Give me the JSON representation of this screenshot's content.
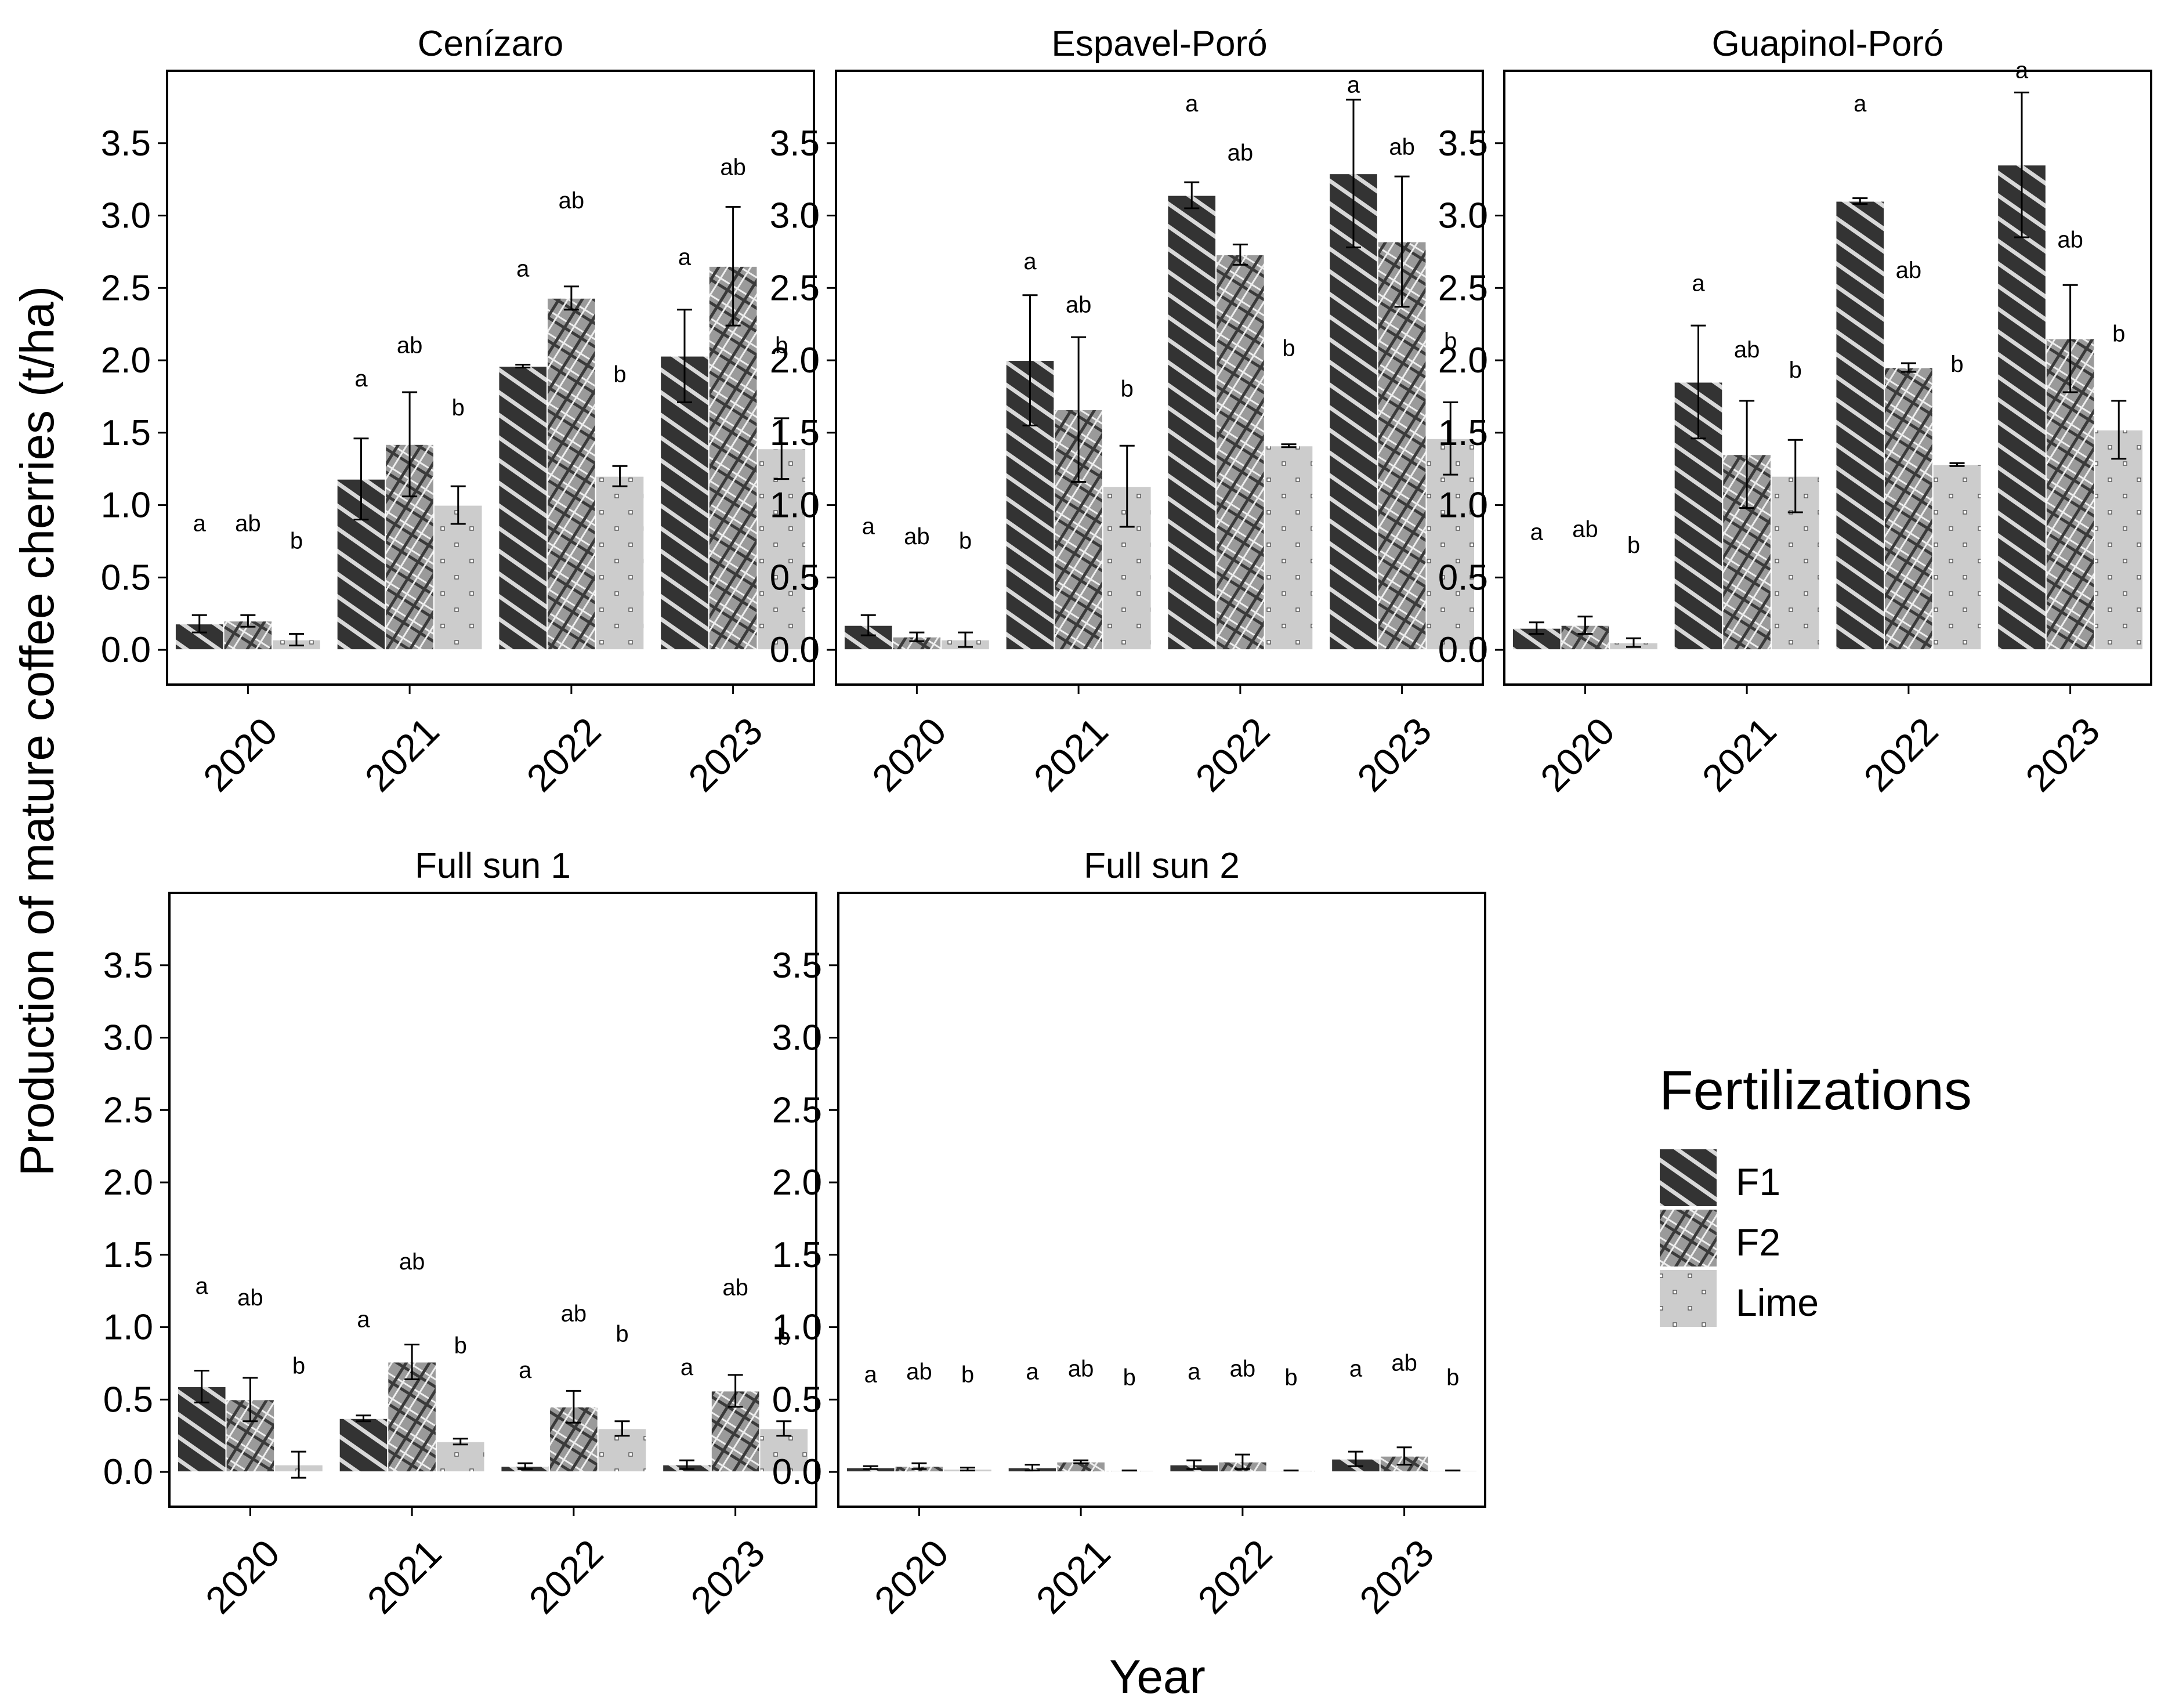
{
  "chart_data": {
    "type": "bar",
    "xlabel": "Year",
    "ylabel": "Production of mature coffee cherries (t/ha)",
    "ylim": [
      -0.24,
      4.0
    ],
    "yticks": [
      "0.0",
      "0.5",
      "1.0",
      "1.5",
      "2.0",
      "2.5",
      "3.0",
      "3.5"
    ],
    "categories": [
      "2020",
      "2021",
      "2022",
      "2023"
    ],
    "legend": {
      "title": "Fertilizations",
      "position": "right",
      "items": [
        "F1",
        "F2",
        "Lime"
      ]
    },
    "series_colors": [
      "#333333",
      "#999999",
      "#cccccc"
    ],
    "panels": [
      {
        "title": "Cenízaro",
        "series": [
          {
            "name": "F1",
            "values": [
              0.18,
              1.18,
              1.96,
              2.03
            ],
            "errors": [
              0.06,
              0.28,
              0.01,
              0.32
            ]
          },
          {
            "name": "F2",
            "values": [
              0.2,
              1.42,
              2.43,
              2.65
            ],
            "errors": [
              0.04,
              0.36,
              0.08,
              0.41
            ]
          },
          {
            "name": "Lime",
            "values": [
              0.07,
              1.0,
              1.2,
              1.39
            ],
            "errors": [
              0.04,
              0.13,
              0.07,
              0.21
            ]
          }
        ],
        "letters": [
          {
            "F1": "a",
            "F2": "ab",
            "Lime": "b",
            "y": [
              0.82,
              0.82,
              0.7
            ]
          },
          {
            "F1": "a",
            "F2": "ab",
            "Lime": "b",
            "y": [
              1.82,
              2.05,
              1.62
            ]
          },
          {
            "F1": "a",
            "F2": "ab",
            "Lime": "b",
            "y": [
              2.58,
              3.05,
              1.85
            ]
          },
          {
            "F1": "a",
            "F2": "ab",
            "Lime": "b",
            "y": [
              2.66,
              3.28,
              2.05
            ]
          }
        ]
      },
      {
        "title": "Espavel-Poró",
        "series": [
          {
            "name": "F1",
            "values": [
              0.17,
              2.0,
              3.14,
              3.29
            ],
            "errors": [
              0.07,
              0.45,
              0.09,
              0.51
            ]
          },
          {
            "name": "F2",
            "values": [
              0.09,
              1.66,
              2.73,
              2.82
            ],
            "errors": [
              0.03,
              0.5,
              0.07,
              0.45
            ]
          },
          {
            "name": "Lime",
            "values": [
              0.07,
              1.13,
              1.41,
              1.46
            ],
            "errors": [
              0.05,
              0.28,
              0.01,
              0.25
            ]
          }
        ],
        "letters": [
          {
            "F1": "a",
            "F2": "ab",
            "Lime": "b",
            "y": [
              0.8,
              0.73,
              0.7
            ]
          },
          {
            "F1": "a",
            "F2": "ab",
            "Lime": "b",
            "y": [
              2.63,
              2.33,
              1.75
            ]
          },
          {
            "F1": "a",
            "F2": "ab",
            "Lime": "b",
            "y": [
              3.72,
              3.38,
              2.03
            ]
          },
          {
            "F1": "a",
            "F2": "ab",
            "Lime": "b",
            "y": [
              3.85,
              3.42,
              2.08
            ]
          }
        ]
      },
      {
        "title": "Guapinol-Poró",
        "series": [
          {
            "name": "F1",
            "values": [
              0.15,
              1.85,
              3.1,
              3.35
            ],
            "errors": [
              0.04,
              0.39,
              0.02,
              0.5
            ]
          },
          {
            "name": "F2",
            "values": [
              0.17,
              1.35,
              1.95,
              2.15
            ],
            "errors": [
              0.06,
              0.37,
              0.03,
              0.37
            ]
          },
          {
            "name": "Lime",
            "values": [
              0.05,
              1.2,
              1.28,
              1.52
            ],
            "errors": [
              0.03,
              0.25,
              0.01,
              0.2
            ]
          }
        ],
        "letters": [
          {
            "F1": "a",
            "F2": "ab",
            "Lime": "b",
            "y": [
              0.76,
              0.78,
              0.67
            ]
          },
          {
            "F1": "a",
            "F2": "ab",
            "Lime": "b",
            "y": [
              2.48,
              2.02,
              1.88
            ]
          },
          {
            "F1": "a",
            "F2": "ab",
            "Lime": "b",
            "y": [
              3.72,
              2.57,
              1.92
            ]
          },
          {
            "F1": "a",
            "F2": "ab",
            "Lime": "b",
            "y": [
              3.95,
              2.78,
              2.13
            ]
          }
        ]
      },
      {
        "title": "Full sun 1",
        "series": [
          {
            "name": "F1",
            "values": [
              0.59,
              0.37,
              0.04,
              0.05
            ],
            "errors": [
              0.11,
              0.02,
              0.02,
              0.03
            ]
          },
          {
            "name": "F2",
            "values": [
              0.5,
              0.76,
              0.45,
              0.56
            ],
            "errors": [
              0.15,
              0.12,
              0.11,
              0.11
            ]
          },
          {
            "name": "Lime",
            "values": [
              0.05,
              0.21,
              0.3,
              0.3
            ],
            "errors": [
              0.09,
              0.02,
              0.05,
              0.05
            ]
          }
        ],
        "letters": [
          {
            "F1": "a",
            "F2": "ab",
            "Lime": "b",
            "y": [
              1.23,
              1.15,
              0.68
            ]
          },
          {
            "F1": "a",
            "F2": "ab",
            "Lime": "b",
            "y": [
              1.0,
              1.4,
              0.82
            ]
          },
          {
            "F1": "a",
            "F2": "ab",
            "Lime": "b",
            "y": [
              0.65,
              1.04,
              0.9
            ]
          },
          {
            "F1": "a",
            "F2": "ab",
            "Lime": "b",
            "y": [
              0.67,
              1.22,
              0.88
            ]
          }
        ]
      },
      {
        "title": "Full sun 2",
        "series": [
          {
            "name": "F1",
            "values": [
              0.03,
              0.03,
              0.05,
              0.09
            ],
            "errors": [
              0.01,
              0.02,
              0.03,
              0.05
            ]
          },
          {
            "name": "F2",
            "values": [
              0.04,
              0.07,
              0.07,
              0.11
            ],
            "errors": [
              0.02,
              0.01,
              0.05,
              0.06
            ]
          },
          {
            "name": "Lime",
            "values": [
              0.02,
              0.01,
              0.01,
              0.01
            ],
            "errors": [
              0.01,
              0.0,
              0.0,
              0.0
            ]
          }
        ],
        "letters": [
          {
            "F1": "a",
            "F2": "ab",
            "Lime": "b",
            "y": [
              0.62,
              0.64,
              0.62
            ]
          },
          {
            "F1": "a",
            "F2": "ab",
            "Lime": "b",
            "y": [
              0.64,
              0.66,
              0.6
            ]
          },
          {
            "F1": "a",
            "F2": "ab",
            "Lime": "b",
            "y": [
              0.64,
              0.66,
              0.6
            ]
          },
          {
            "F1": "a",
            "F2": "ab",
            "Lime": "b",
            "y": [
              0.66,
              0.7,
              0.6
            ]
          }
        ]
      }
    ]
  }
}
